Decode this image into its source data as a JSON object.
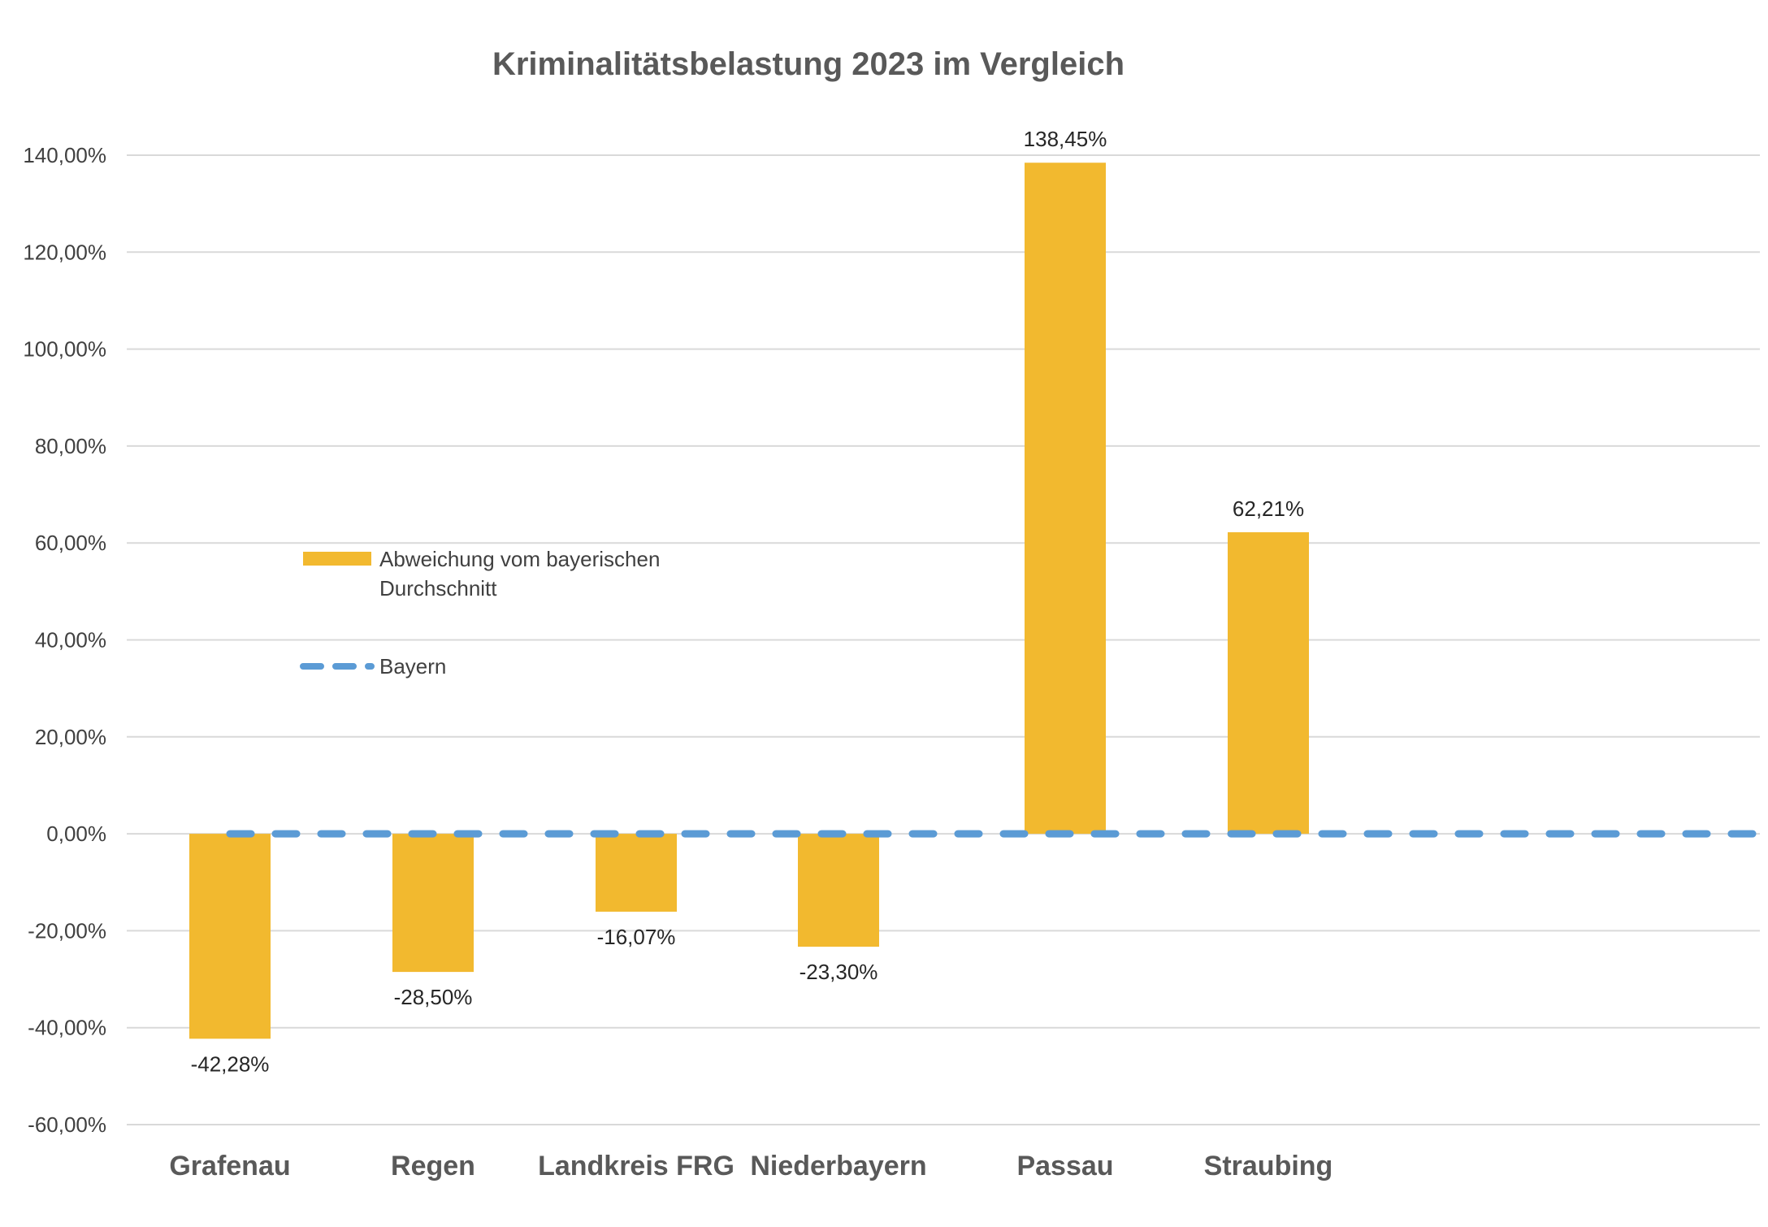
{
  "chart_data": {
    "type": "bar",
    "title": "Kriminalitätsbelastung 2023 im Vergleich",
    "xlabel": "",
    "ylabel": "",
    "ylim": [
      -60,
      140
    ],
    "y_tick_step": 20,
    "y_tick_labels": [
      "140,00%",
      "120,00%",
      "100,00%",
      "80,00%",
      "60,00%",
      "40,00%",
      "20,00%",
      "0,00%",
      "-20,00%",
      "-40,00%",
      "-60,00%"
    ],
    "grid": true,
    "categories": [
      "Grafenau",
      "Regen",
      "Landkreis FRG",
      "Niederbayern",
      "Passau",
      "Straubing"
    ],
    "series": [
      {
        "name": "Abweichung vom bayerischen Durchschnitt",
        "type": "bar",
        "color": "#F2B92F",
        "values": [
          -42.28,
          -28.5,
          -16.07,
          -23.3,
          138.45,
          62.21
        ],
        "data_labels": [
          "-42,28%",
          "-28,50%",
          "-16,07%",
          "-23,30%",
          "138,45%",
          "62,21%"
        ]
      },
      {
        "name": "Bayern",
        "type": "line",
        "style": "dashed",
        "color": "#5B9BD5",
        "value": 0
      }
    ],
    "legend": {
      "position": "left-center",
      "entries": [
        "Abweichung vom bayerischen",
        "Durchschnitt",
        "Bayern"
      ]
    }
  }
}
